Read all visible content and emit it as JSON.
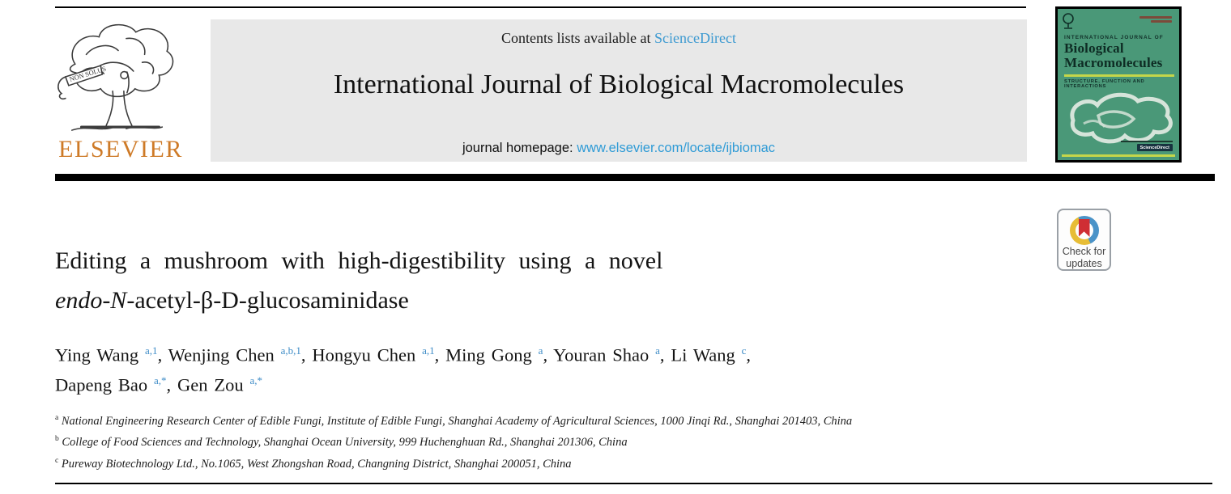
{
  "masthead": {
    "contents_prefix": "Contents lists available at ",
    "sciencedirect_label": "ScienceDirect",
    "journal_title": "International Journal of Biological Macromolecules",
    "homepage_prefix": "journal homepage: ",
    "homepage_url": "www.elsevier.com/locate/ijbiomac",
    "publisher_wordmark": "ELSEVIER",
    "logo_banner_text": "NON SOLUS"
  },
  "cover": {
    "kicker": "INTERNATIONAL JOURNAL OF",
    "title_line1": "Biological",
    "title_line2": "Macromolecules",
    "subtitle": "STRUCTURE, FUNCTION AND INTERACTIONS",
    "badge_label": "ScienceDirect"
  },
  "crossmark": {
    "line1": "Check for",
    "line2": "updates"
  },
  "article": {
    "title_line1": "Editing a mushroom with high-digestibility using a novel",
    "title_line2_italic": "endo-N",
    "title_line2_rest": "-acetyl-β-D-glucosaminidase"
  },
  "authors": [
    {
      "name": "Ying Wang",
      "sup": "a,1"
    },
    {
      "name": "Wenjing Chen",
      "sup": "a,b,1"
    },
    {
      "name": "Hongyu Chen",
      "sup": "a,1"
    },
    {
      "name": "Ming Gong",
      "sup": "a"
    },
    {
      "name": "Youran Shao",
      "sup": "a"
    },
    {
      "name": "Li Wang",
      "sup": "c"
    },
    {
      "name": "Dapeng Bao",
      "sup": "a,*"
    },
    {
      "name": "Gen Zou",
      "sup": "a,*"
    }
  ],
  "affiliations": [
    {
      "sup": "a",
      "text": "National Engineering Research Center of Edible Fungi, Institute of Edible Fungi, Shanghai Academy of Agricultural Sciences, 1000 Jinqi Rd., Shanghai 201403, China"
    },
    {
      "sup": "b",
      "text": "College of Food Sciences and Technology, Shanghai Ocean University, 999 Huchenghuan Rd., Shanghai 201306, China"
    },
    {
      "sup": "c",
      "text": "Pureway Biotechnology Ltd., No.1065, West Zhongshan Road, Changning District, Shanghai 200051, China"
    }
  ],
  "colors": {
    "link_blue": "#3d9ad1",
    "superscript_blue": "#3e8cc7",
    "elsevier_orange": "#ce7a27",
    "masthead_gray": "#e8e8e8",
    "cover_green": "#4a9878",
    "cover_accent": "#c5d64a",
    "crossmark_red": "#cf2e34",
    "crossmark_yellow": "#e7bd36",
    "crossmark_blue": "#4a93c8"
  }
}
